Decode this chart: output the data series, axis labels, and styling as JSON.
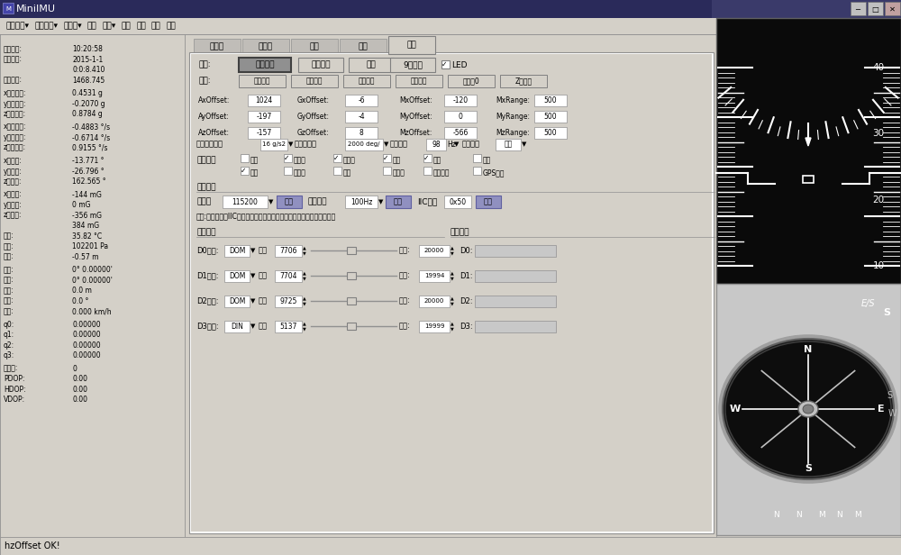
{
  "title": "MiniIMU",
  "bg_color": "#c0c0c0",
  "window_bg": "#d4d0c8",
  "title_bar_text": "MiniIMU",
  "menu_items": [
    "硬件版本▾",
    "端口配置▾",
    "波特率▾",
    "记录",
    "语言▾",
    "清图",
    "三维",
    "论坛",
    "商城"
  ],
  "left_labels": [
    [
      "系统时间:",
      "10:20:58"
    ],
    [
      "片上时间:",
      "2015-1-1"
    ],
    [
      "",
      "0:0:8.410"
    ],
    [
      "相对时间:",
      "1468.745"
    ],
    [
      "",
      ""
    ],
    [
      "x轴加速度:",
      "0.4531 g"
    ],
    [
      "y轴加速度:",
      "-0.2070 g"
    ],
    [
      "z轴加速度:",
      "0.8784 g"
    ],
    [
      "",
      ""
    ],
    [
      "x轴角速度:",
      "-0.4883 °/s"
    ],
    [
      "y轴角速度:",
      "-0.6714 °/s"
    ],
    [
      "z轴角速度:",
      "0.9155 °/s"
    ],
    [
      "",
      ""
    ],
    [
      "x轴角度:",
      "-13.771 °"
    ],
    [
      "y轴角度:",
      "-26.796 °"
    ],
    [
      "z轴角度:",
      "162.565 °"
    ],
    [
      "",
      ""
    ],
    [
      "x轴磁场:",
      "-144 mG"
    ],
    [
      "y轴磁场:",
      "0 mG"
    ],
    [
      "z轴磁场:",
      "-356 mG"
    ],
    [
      "",
      "384 mG"
    ],
    [
      "温度:",
      "35.82 °C"
    ],
    [
      "气压:",
      "102201 Pa"
    ],
    [
      "高度:",
      "-0.57 m"
    ],
    [
      "",
      ""
    ],
    [
      "经度:",
      "0° 0.00000'"
    ],
    [
      "纬度:",
      "0° 0.00000'"
    ],
    [
      "海拔:",
      "0.0 m"
    ],
    [
      "航向:",
      "0.0 °"
    ],
    [
      "地速:",
      "0.000 km/h"
    ],
    [
      "",
      ""
    ],
    [
      "q0:",
      "0.00000"
    ],
    [
      "q1:",
      "0.00000"
    ],
    [
      "q2:",
      "0.00000"
    ],
    [
      "q3:",
      "0.00000"
    ],
    [
      "",
      ""
    ],
    [
      "卫星数:",
      "0"
    ],
    [
      "PDOP:",
      "0.00"
    ],
    [
      "HDOP:",
      "0.00"
    ],
    [
      "VDOP:",
      "0.00"
    ]
  ],
  "tabs": [
    "加速度",
    "角速度",
    "磁场",
    "角度",
    "设置"
  ],
  "active_tab": "设置",
  "status_bar_text": "hzOffset OK!",
  "gauge_numbers": [
    40,
    30,
    20,
    10
  ],
  "compass_letters_top": [
    "E/S",
    "S"
  ],
  "compass_letters_sides": [
    "E",
    "S",
    "W"
  ],
  "compass_letters_bottom": [
    "N",
    "N",
    "M",
    "N",
    "M"
  ]
}
